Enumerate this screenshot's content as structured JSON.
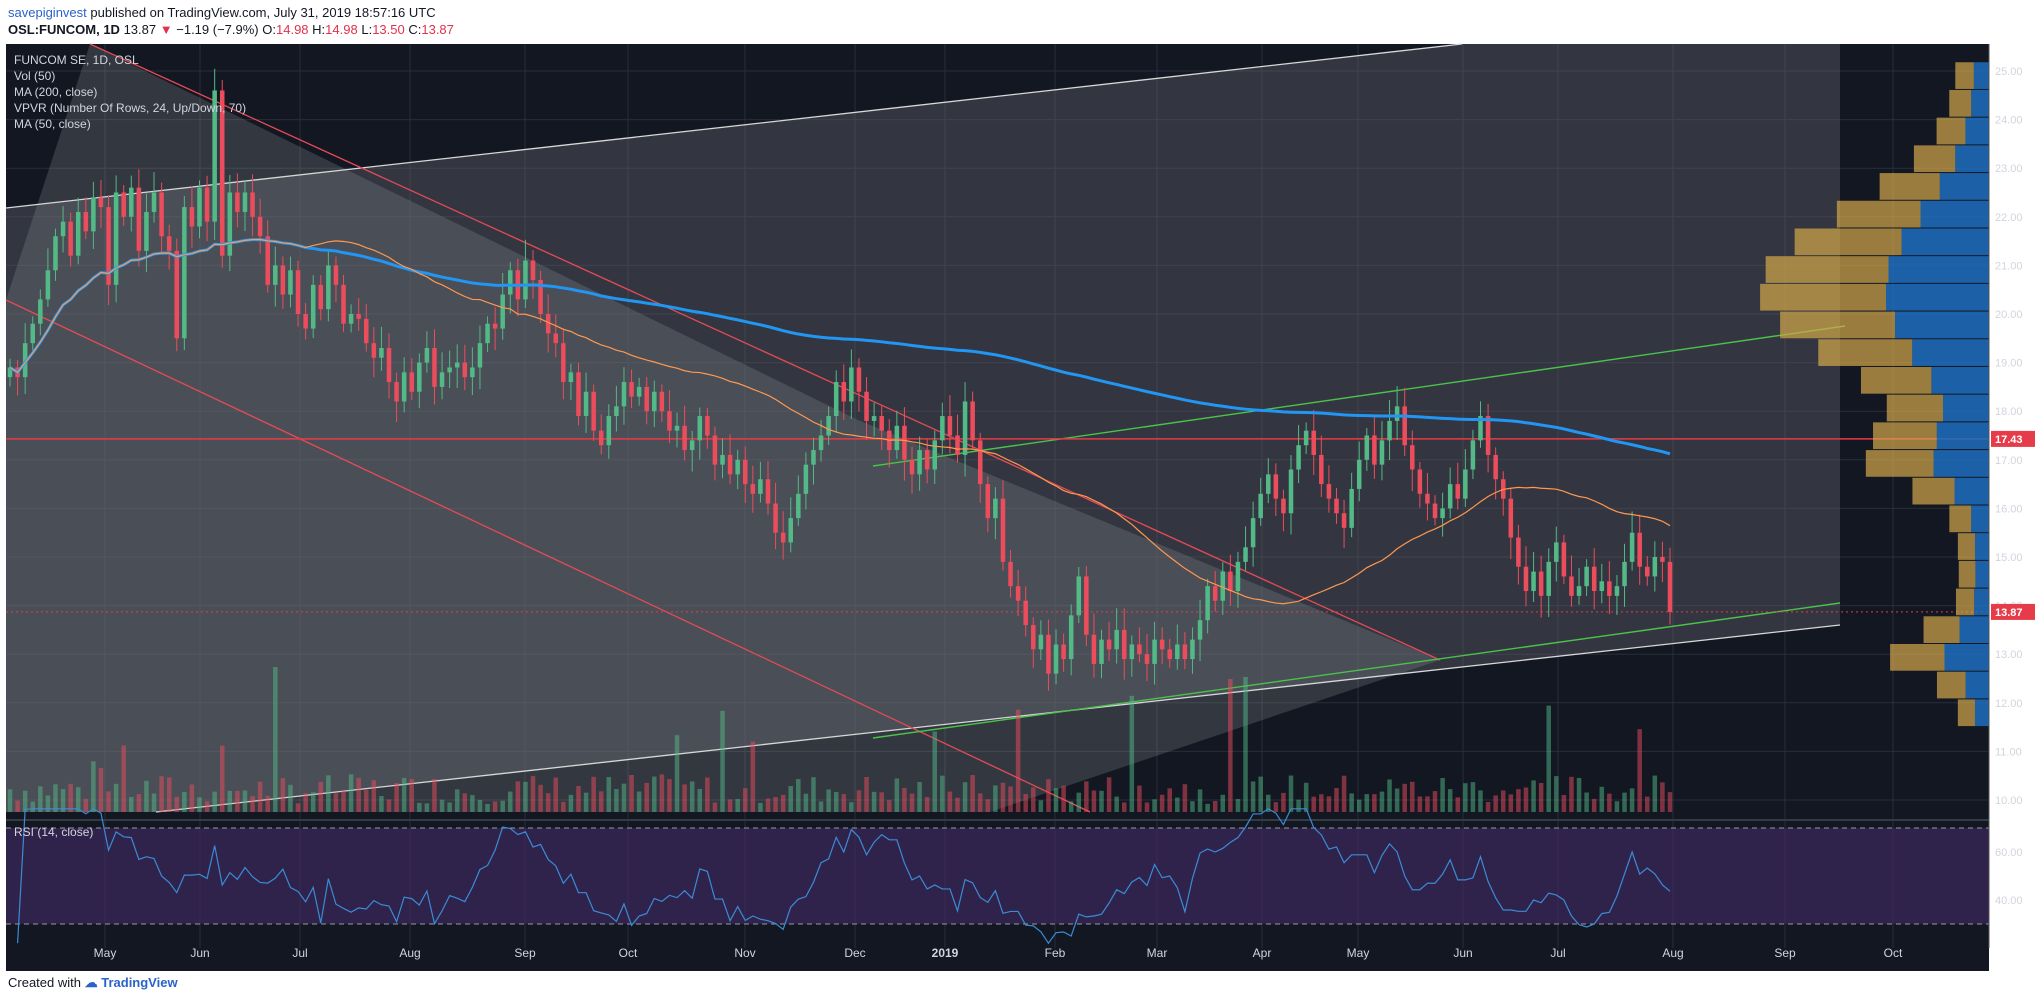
{
  "header": {
    "author": "savepiginvest",
    "published": "published on TradingView.com, July 31, 2019 18:57:16 UTC",
    "symbol": "OSL:FUNCOM, 1D",
    "last": "13.87",
    "change": "−1.19 (−7.9%)",
    "o_label": "O:",
    "o": "14.98",
    "h_label": "H:",
    "h": "14.98",
    "l_label": "L:",
    "l": "13.50",
    "c_label": "C:",
    "c": "13.87"
  },
  "footer": {
    "prefix": "Created with",
    "brand": "TradingView"
  },
  "legend": [
    "FUNCOM SE, 1D, OSL",
    "Vol (50)",
    "MA (200, close)",
    "VPVR (Number Of Rows, 24, Up/Down, 70)",
    "MA (50, close)"
  ],
  "rsi_legend": "RSI (14, close)",
  "colors": {
    "background": "#131722",
    "up": "#53b987",
    "down": "#eb4d5c",
    "ma200": "#2196f3",
    "ma50": "#ff9850",
    "vpvr_up": "#1f6fc0",
    "vpvr_down": "#d4a84a",
    "rsi": "#3a8bd6",
    "rsi_band": "#3d2a5c",
    "price_line": "#e63b48",
    "trend_green": "#4bc24b"
  },
  "chart_data": {
    "type": "candlestick",
    "price_axis_ticks": [
      "10.00",
      "11.00",
      "12.00",
      "13.00",
      "14.00",
      "15.00",
      "16.00",
      "17.00",
      "18.00",
      "19.00",
      "20.00",
      "21.00",
      "22.00",
      "23.00",
      "24.00",
      "25.00"
    ],
    "price_range": [
      9.8,
      25.4
    ],
    "time_axis_ticks": [
      "May",
      "Jun",
      "Jul",
      "Aug",
      "Sep",
      "Oct",
      "Nov",
      "Dec",
      "2019",
      "Feb",
      "Mar",
      "Apr",
      "May",
      "Jun",
      "Jul",
      "Aug",
      "Sep",
      "Oct"
    ],
    "price_labels": [
      {
        "value": 17.43,
        "text": "17.43"
      },
      {
        "value": 13.87,
        "text": "13.87"
      }
    ],
    "rsi_axis_ticks": [
      "40.00",
      "60.00"
    ],
    "rsi_bands": [
      30,
      70
    ],
    "closes": [
      18.9,
      18.7,
      19.4,
      19.8,
      20.3,
      20.9,
      21.6,
      21.9,
      21.2,
      22.1,
      21.7,
      22.4,
      22.2,
      20.6,
      22.5,
      22.0,
      22.6,
      21.3,
      22.1,
      22.5,
      21.6,
      21.3,
      19.5,
      22.2,
      21.8,
      22.6,
      21.9,
      24.6,
      21.2,
      22.5,
      22.1,
      22.5,
      22.0,
      21.6,
      20.6,
      21.0,
      20.4,
      20.9,
      20.0,
      19.7,
      20.6,
      20.1,
      21.0,
      20.6,
      19.8,
      20.0,
      19.9,
      19.4,
      19.1,
      19.3,
      18.6,
      18.2,
      18.8,
      18.4,
      19.0,
      19.3,
      18.5,
      18.8,
      18.9,
      19.0,
      18.7,
      18.9,
      19.4,
      19.8,
      19.7,
      20.4,
      20.9,
      20.3,
      21.1,
      20.7,
      20.0,
      19.6,
      19.4,
      18.6,
      18.8,
      17.9,
      18.4,
      17.6,
      17.3,
      17.9,
      18.1,
      18.6,
      18.3,
      18.5,
      18.0,
      18.4,
      18.0,
      17.6,
      17.7,
      17.2,
      17.4,
      17.9,
      17.5,
      16.9,
      17.1,
      16.7,
      17.0,
      16.5,
      16.3,
      16.6,
      16.1,
      15.5,
      15.3,
      15.8,
      16.3,
      16.9,
      17.2,
      17.5,
      17.9,
      18.6,
      18.2,
      18.9,
      18.4,
      17.8,
      17.9,
      17.6,
      17.2,
      17.7,
      17.0,
      16.7,
      17.2,
      16.8,
      17.4,
      17.9,
      17.5,
      17.1,
      18.2,
      17.4,
      16.5,
      15.8,
      16.2,
      14.9,
      14.4,
      14.1,
      13.6,
      13.1,
      13.4,
      12.6,
      13.2,
      12.9,
      13.8,
      14.6,
      13.4,
      12.8,
      13.3,
      13.1,
      13.5,
      12.9,
      13.2,
      13.0,
      12.8,
      13.3,
      13.1,
      12.9,
      13.2,
      12.9,
      13.3,
      13.7,
      14.4,
      14.1,
      14.7,
      14.3,
      14.9,
      15.2,
      15.8,
      16.3,
      16.7,
      16.2,
      15.9,
      16.8,
      17.3,
      17.6,
      17.1,
      16.5,
      16.2,
      15.9,
      15.6,
      16.4,
      17.0,
      17.5,
      16.9,
      17.4,
      17.8,
      18.1,
      17.3,
      16.8,
      16.3,
      16.1,
      15.8,
      16.0,
      16.5,
      16.2,
      16.8,
      17.4,
      17.9,
      17.1,
      16.6,
      16.2,
      15.4,
      14.8,
      14.3,
      14.7,
      14.2,
      14.9,
      15.3,
      14.6,
      14.2,
      14.4,
      14.8,
      14.3,
      14.5,
      14.2,
      14.4,
      14.9,
      15.5,
      14.8,
      14.6,
      15.0,
      14.9,
      13.87
    ]
  }
}
